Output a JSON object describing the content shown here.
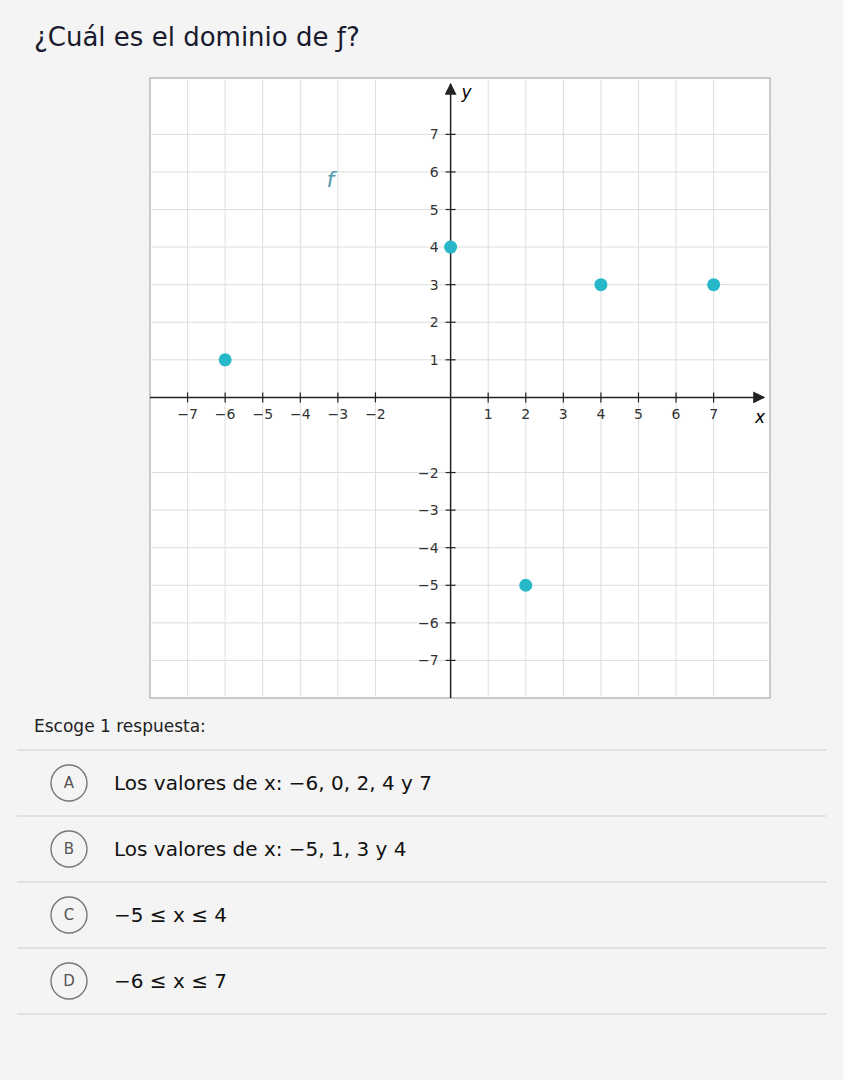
{
  "chart_data": {
    "type": "scatter",
    "title": "¿Cuál es el dominio de ƒ?",
    "x_label": "x",
    "y_label": "y",
    "x": [
      -6,
      0,
      2,
      4,
      7
    ],
    "y": [
      1,
      4,
      -5,
      3,
      3
    ],
    "color": "#26b8c8",
    "xlim": [
      -8.0,
      8.5
    ],
    "ylim": [
      -8.0,
      8.5
    ],
    "xticks": [
      {
        "value": -7,
        "label": "−7"
      },
      {
        "value": -6,
        "label": "−6"
      },
      {
        "value": -5,
        "label": "−5"
      },
      {
        "value": -4,
        "label": "−4"
      },
      {
        "value": -3,
        "label": "−3"
      },
      {
        "value": -2,
        "label": "−2"
      },
      1,
      2,
      3,
      4,
      5,
      6,
      7
    ],
    "yticks": [
      {
        "value": -7,
        "label": "−7"
      },
      {
        "value": -6,
        "label": "−6"
      },
      {
        "value": -5,
        "label": "−5"
      },
      {
        "value": -4,
        "label": "−4"
      },
      {
        "value": -3,
        "label": "−3"
      },
      {
        "value": -2,
        "label": "−2"
      },
      1,
      2,
      3,
      4,
      5,
      6,
      7
    ],
    "grid": true,
    "annotations": [
      {
        "text": "f",
        "x": -3.2,
        "y": 5.8,
        "color": "#5599aa"
      }
    ],
    "prompt": "Escoge 1 respuesta:",
    "choices": [
      {
        "letter": "A",
        "text": "Los valores de x: −6, 0, 2, 4 y 7"
      },
      {
        "letter": "B",
        "text": "Los valores de x: −5, 1, 3 y 4"
      },
      {
        "letter": "C",
        "text": "−5 ≤ x ≤ 4"
      },
      {
        "letter": "D",
        "text": "−6 ≤ x ≤ 7"
      }
    ]
  }
}
